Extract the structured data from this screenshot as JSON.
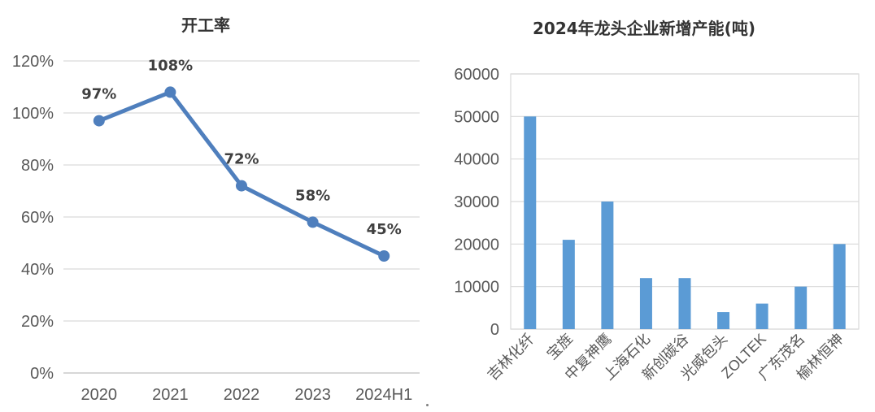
{
  "charts": {
    "utilization": {
      "title": "开工率",
      "x_ticks": [
        "2020",
        "2021",
        "2022",
        "2023",
        "2024H1"
      ],
      "y_ticks": [
        "0%",
        "20%",
        "40%",
        "60%",
        "80%",
        "100%",
        "120%"
      ],
      "data_labels": [
        "97%",
        "108%",
        "72%",
        "58%",
        "45%"
      ]
    },
    "capacity": {
      "title": "2024年龙头企业新增产能(吨)",
      "x_ticks": [
        "吉林化纤",
        "宝旌",
        "中复神鹰",
        "上海石化",
        "新创碳谷",
        "光威包头",
        "ZOLTEK",
        "广东茂名",
        "榆林恒神"
      ],
      "y_ticks": [
        "0",
        "10000",
        "20000",
        "30000",
        "40000",
        "50000",
        "60000"
      ]
    }
  },
  "colors": {
    "line": "#4f7fbd",
    "bar": "#5b9bd5",
    "grid": "#d9d9d9"
  },
  "chart_data": [
    {
      "type": "line",
      "title": "开工率",
      "categories": [
        "2020",
        "2021",
        "2022",
        "2023",
        "2024H1"
      ],
      "values": [
        97,
        108,
        72,
        58,
        45
      ],
      "unit": "%",
      "ylim": [
        0,
        120
      ],
      "y_step": 20,
      "grid": true,
      "legend": "none"
    },
    {
      "type": "bar",
      "title": "2024年龙头企业新增产能(吨)",
      "categories": [
        "吉林化纤",
        "宝旌",
        "中复神鹰",
        "上海石化",
        "新创碳谷",
        "光威包头",
        "ZOLTEK",
        "广东茂名",
        "榆林恒神"
      ],
      "values": [
        50000,
        21000,
        30000,
        12000,
        12000,
        4000,
        6000,
        10000,
        20000
      ],
      "ylim": [
        0,
        60000
      ],
      "y_step": 10000,
      "grid": true,
      "legend": "none"
    }
  ]
}
